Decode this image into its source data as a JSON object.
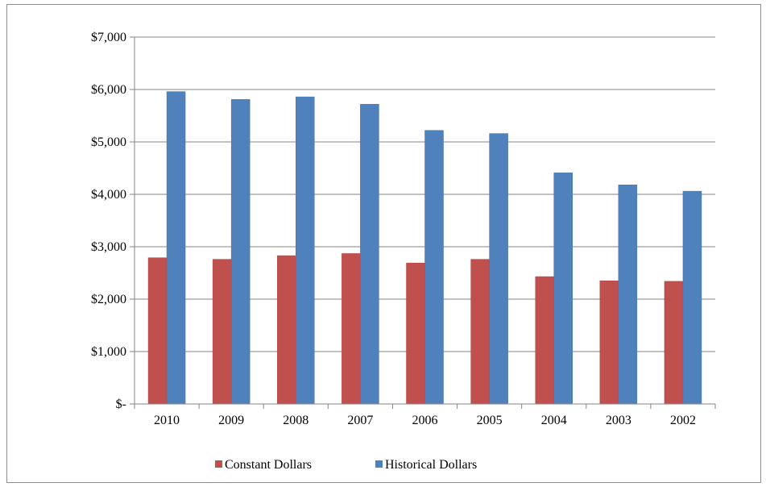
{
  "chart_data": {
    "type": "bar",
    "title": "",
    "xlabel": "",
    "ylabel": "",
    "categories": [
      "2010",
      "2009",
      "2008",
      "2007",
      "2006",
      "2005",
      "2004",
      "2003",
      "2002"
    ],
    "series": [
      {
        "name": "Constant Dollars",
        "color": "#c0504d",
        "values": [
          2790,
          2760,
          2830,
          2870,
          2690,
          2760,
          2430,
          2350,
          2340
        ]
      },
      {
        "name": "Historical Dollars",
        "color": "#4f81bd",
        "values": [
          5960,
          5810,
          5860,
          5720,
          5220,
          5160,
          4410,
          4180,
          4060
        ]
      }
    ],
    "ylim": [
      0,
      7000
    ],
    "yticks": [
      0,
      1000,
      2000,
      3000,
      4000,
      5000,
      6000,
      7000
    ],
    "ytick_labels": [
      "$-",
      "$1,000",
      "$2,000",
      "$3,000",
      "$4,000",
      "$5,000",
      "$6,000",
      "$7,000"
    ],
    "grid": true,
    "legend_position": "bottom"
  }
}
